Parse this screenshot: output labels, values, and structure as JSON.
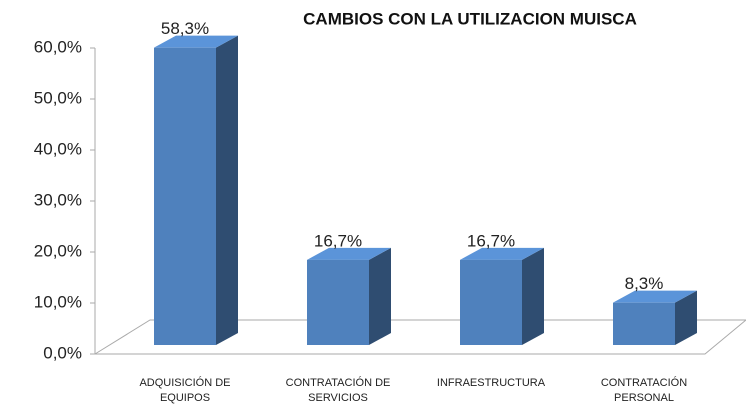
{
  "chart_data": {
    "type": "bar",
    "title": "CAMBIOS CON LA UTILIZACION MUISCA",
    "categories": [
      "ADQUISICIÓN DE EQUIPOS",
      "CONTRATACIÓN DE SERVICIOS",
      "INFRAESTRUCTURA",
      "CONTRATACIÓN PERSONAL"
    ],
    "values": [
      58.3,
      16.7,
      16.7,
      8.3
    ],
    "value_labels": [
      "58,3%",
      "16,7%",
      "16,7%",
      "8,3%"
    ],
    "color": "#4f81bd",
    "ylim": [
      0,
      60
    ],
    "yticks": [
      {
        "value": 0,
        "label": "0,0%"
      },
      {
        "value": 10,
        "label": "10,0%"
      },
      {
        "value": 20,
        "label": "20,0%"
      },
      {
        "value": 30,
        "label": "30,0%"
      },
      {
        "value": 40,
        "label": "40,0%"
      },
      {
        "value": 50,
        "label": "50,0%"
      },
      {
        "value": 60,
        "label": "60,0%"
      }
    ],
    "grid": false
  }
}
